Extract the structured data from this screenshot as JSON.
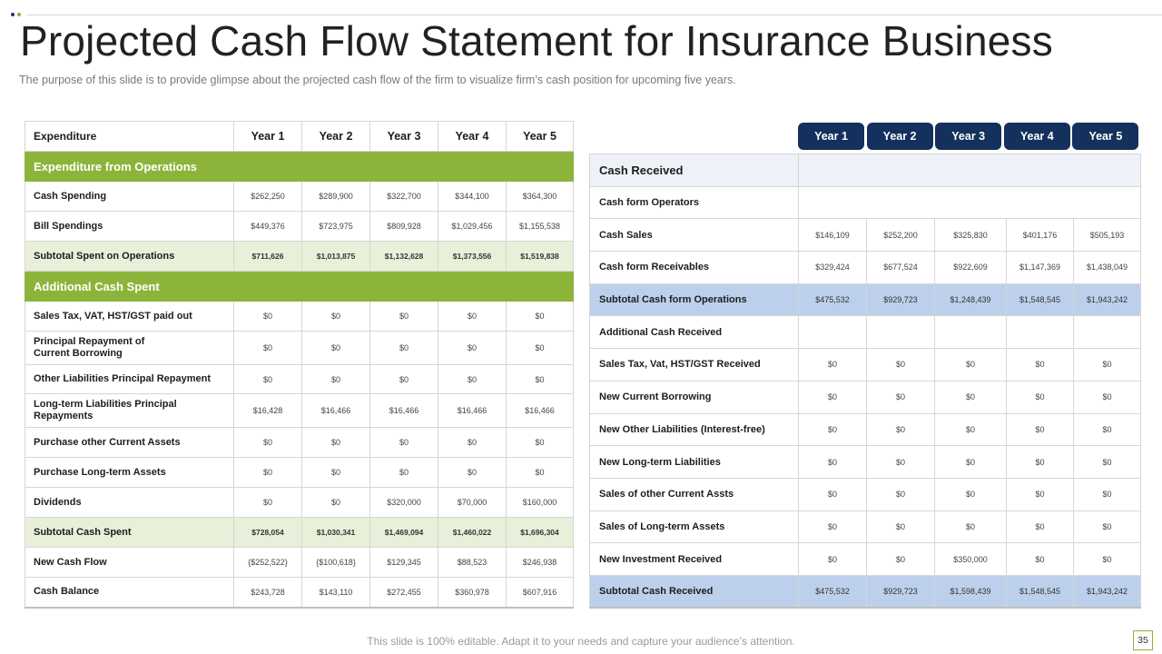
{
  "title": "Projected Cash Flow Statement for Insurance Business",
  "subtitle": "The purpose  of this slide is to provide  glimpse  about the projected cash flow of the firm to visualize firm’s cash position for upcoming five  years.",
  "colors": {
    "green": "#8cb43a",
    "navy": "#14305c",
    "light_green": "#e9f0d9",
    "light_blue": "#bcd0ec"
  },
  "left_table": {
    "header": [
      "Expenditure",
      "Year 1",
      "Year 2",
      "Year 3",
      "Year 4",
      "Year 5"
    ],
    "rows": [
      {
        "type": "section",
        "label": "Expenditure from Operations"
      },
      {
        "type": "row",
        "label": "Cash Spending",
        "values": [
          "$262,250",
          "$289,900",
          "$322,700",
          "$344,100",
          "$364,300"
        ]
      },
      {
        "type": "row",
        "label": "Bill Spendings",
        "values": [
          "$449,376",
          "$723,975",
          "$809,928",
          "$1,029,456",
          "$1,155,538"
        ]
      },
      {
        "type": "subtotal",
        "label": "Subtotal Spent on Operations",
        "values": [
          "$711,626",
          "$1,013,875",
          "$1,132,628",
          "$1,373,556",
          "$1,519,838"
        ]
      },
      {
        "type": "section",
        "label": "Additional Cash Spent"
      },
      {
        "type": "row",
        "label": "Sales Tax, VAT, HST/GST paid out",
        "values": [
          "$0",
          "$0",
          "$0",
          "$0",
          "$0"
        ]
      },
      {
        "type": "row",
        "label": "Principal Repayment of\nCurrent Borrowing",
        "values": [
          "$0",
          "$0",
          "$0",
          "$0",
          "$0"
        ]
      },
      {
        "type": "row",
        "label": "Other Liabilities Principal Repayment",
        "values": [
          "$0",
          "$0",
          "$0",
          "$0",
          "$0"
        ]
      },
      {
        "type": "row",
        "label": "Long-term Liabilities Principal\nRepayments",
        "values": [
          "$16,428",
          "$16,466",
          "$16,466",
          "$16,466",
          "$16,466"
        ]
      },
      {
        "type": "row",
        "label": "Purchase other Current Assets",
        "values": [
          "$0",
          "$0",
          "$0",
          "$0",
          "$0"
        ]
      },
      {
        "type": "row",
        "label": "Purchase Long-term Assets",
        "values": [
          "$0",
          "$0",
          "$0",
          "$0",
          "$0"
        ]
      },
      {
        "type": "row",
        "label": "Dividends",
        "values": [
          "$0",
          "$0",
          "$320,000",
          "$70,000",
          "$160,000"
        ]
      },
      {
        "type": "subtotal",
        "label": "Subtotal Cash Spent",
        "values": [
          "$728,054",
          "$1,030,341",
          "$1,469,094",
          "$1,460,022",
          "$1,696,304"
        ]
      },
      {
        "type": "row",
        "label": "New Cash Flow",
        "values": [
          "{$252,522}",
          "{$100,618}",
          "$129,345",
          "$88,523",
          "$246,938"
        ]
      },
      {
        "type": "row",
        "label": "Cash Balance",
        "values": [
          "$243,728",
          "$143,110",
          "$272,455",
          "$360,978",
          "$607,916"
        ]
      }
    ]
  },
  "right_table": {
    "year_headers": [
      "Year 1",
      "Year 2",
      "Year 3",
      "Year 4",
      "Year 5"
    ],
    "rows": [
      {
        "type": "head",
        "label": "Cash Received"
      },
      {
        "type": "section",
        "label": "Cash form Operators"
      },
      {
        "type": "row",
        "label": "Cash Sales",
        "values": [
          "$146,109",
          "$252,200",
          "$325,830",
          "$401,176",
          "$505,193"
        ]
      },
      {
        "type": "row",
        "label": "Cash form Receivables",
        "values": [
          "$329,424",
          "$677,524",
          "$922,609",
          "$1,147,369",
          "$1,438,049"
        ]
      },
      {
        "type": "subtotal",
        "label": "Subtotal Cash form Operations",
        "values": [
          "$475,532",
          "$929,723",
          "$1,248,439",
          "$1,548,545",
          "$1,943,242"
        ]
      },
      {
        "type": "row",
        "label": "Additional Cash Received",
        "values": [
          "",
          "",
          "",
          "",
          ""
        ]
      },
      {
        "type": "row",
        "label": "Sales Tax, Vat, HST/GST Received",
        "values": [
          "$0",
          "$0",
          "$0",
          "$0",
          "$0"
        ]
      },
      {
        "type": "row",
        "label": "New Current Borrowing",
        "values": [
          "$0",
          "$0",
          "$0",
          "$0",
          "$0"
        ]
      },
      {
        "type": "row",
        "label": "New Other Liabilities (Interest-free)",
        "values": [
          "$0",
          "$0",
          "$0",
          "$0",
          "$0"
        ]
      },
      {
        "type": "row",
        "label": "New Long-term Liabilities",
        "values": [
          "$0",
          "$0",
          "$0",
          "$0",
          "$0"
        ]
      },
      {
        "type": "row",
        "label": "Sales of other Current Assts",
        "values": [
          "$0",
          "$0",
          "$0",
          "$0",
          "$0"
        ]
      },
      {
        "type": "row",
        "label": "Sales of Long-term Assets",
        "values": [
          "$0",
          "$0",
          "$0",
          "$0",
          "$0"
        ]
      },
      {
        "type": "row",
        "label": "New Investment Received",
        "values": [
          "$0",
          "$0",
          "$350,000",
          "$0",
          "$0"
        ]
      },
      {
        "type": "subtotal",
        "label": "Subtotal Cash Received",
        "values": [
          "$475,532",
          "$929,723",
          "$1,598,439",
          "$1,548,545",
          "$1,943,242"
        ]
      }
    ]
  },
  "footer": "This slide is 100% editable. Adapt it to your needs and capture your audience’s attention.",
  "page_number": "35"
}
